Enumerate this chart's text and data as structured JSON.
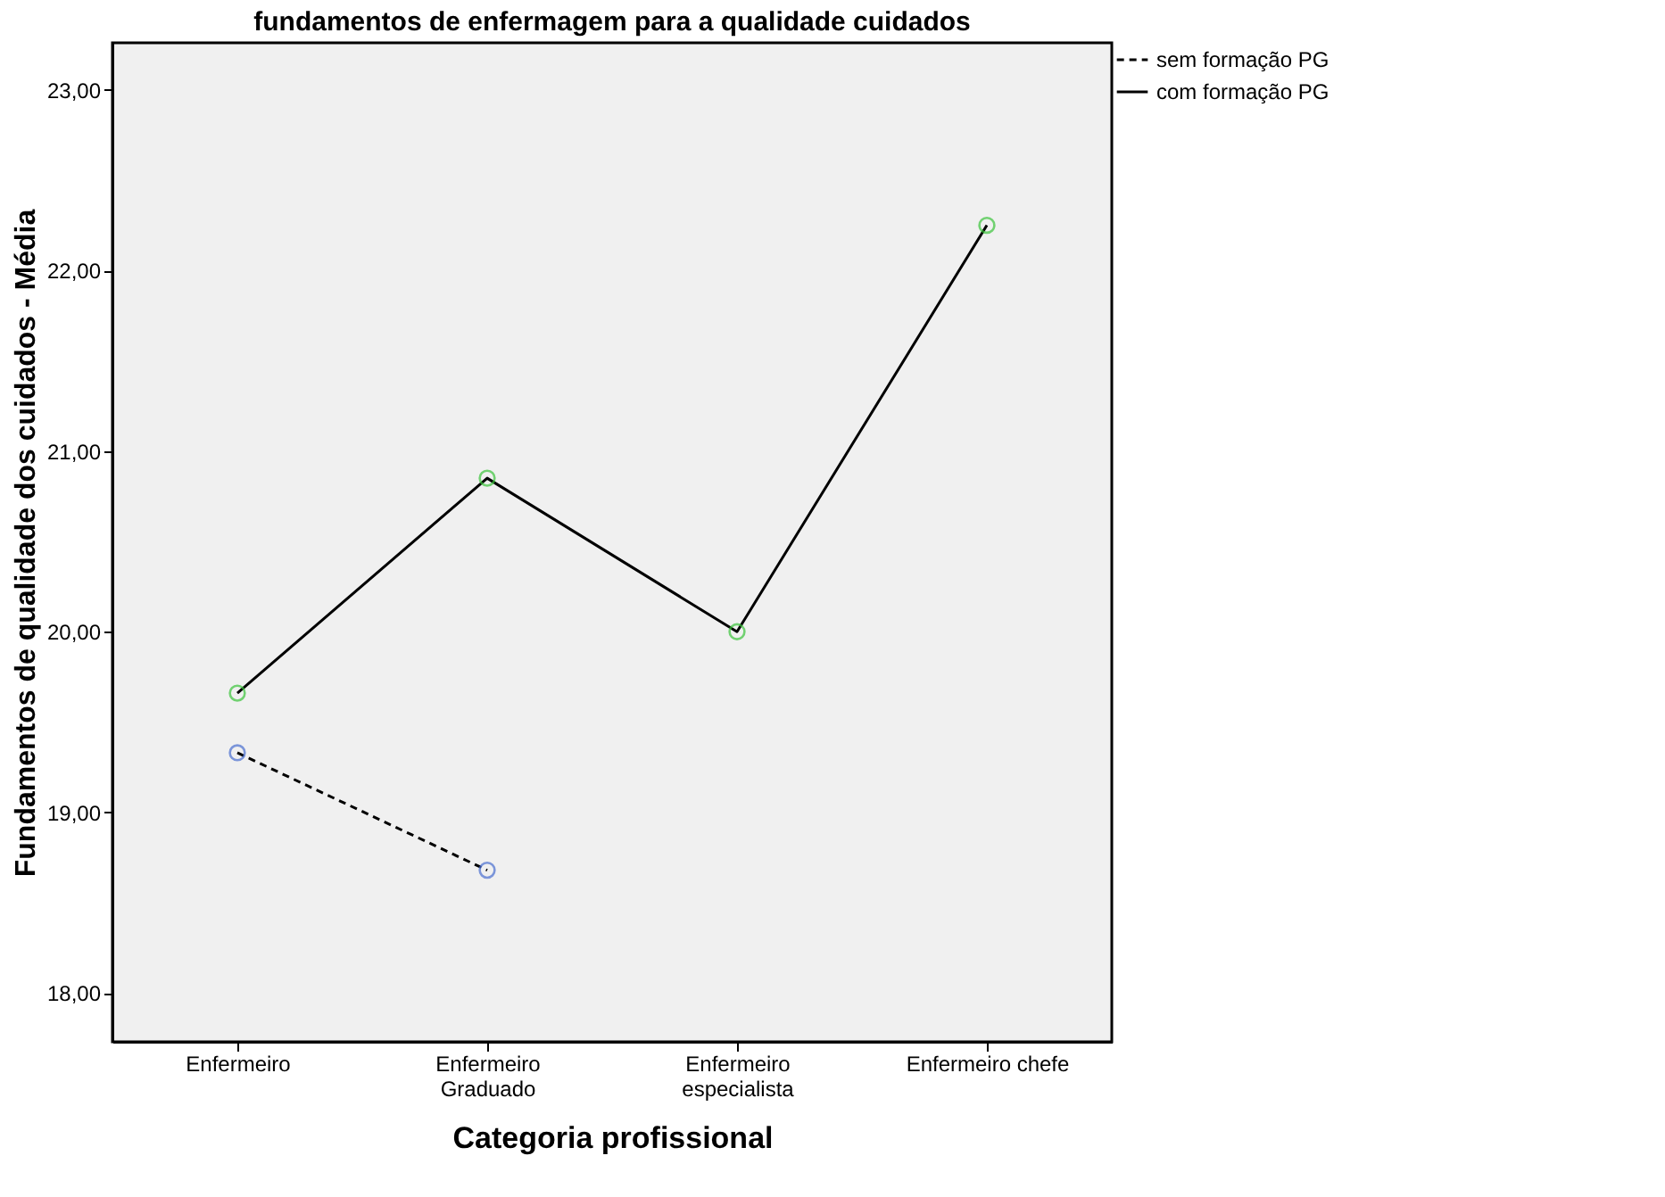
{
  "chart_data": {
    "type": "line",
    "title": "fundamentos de enfermagem para a qualidade cuidados",
    "xlabel": "Categoria profissional",
    "ylabel": "Fundamentos de qualidade dos cuidados - Média",
    "categories": [
      "Enfermeiro",
      "Enfermeiro\nGraduado",
      "Enfermeiro\nespecialista",
      "Enfermeiro chefe"
    ],
    "series": [
      {
        "name": "sem formação PG",
        "color": "#000000",
        "colors": [
          "#4a6fd0",
          "#4a6fd0",
          null,
          null
        ],
        "line_style": "dashed",
        "values": [
          19.33,
          18.68,
          null,
          null
        ]
      },
      {
        "name": "com formação PG",
        "color": "#000000",
        "colors": [
          "#3cc43c",
          "#3cc43c",
          "#3cc43c",
          "#3cc43c"
        ],
        "line_style": "solid",
        "values": [
          19.66,
          20.85,
          20.0,
          22.25
        ]
      }
    ],
    "ylim": [
      17.73,
      23.26
    ],
    "yticks": [
      {
        "value": 18,
        "label": "18,00"
      },
      {
        "value": 19,
        "label": "19,00"
      },
      {
        "value": 20,
        "label": "20,00"
      },
      {
        "value": 21,
        "label": "21,00"
      },
      {
        "value": 22,
        "label": "22,00"
      },
      {
        "value": 23,
        "label": "23,00"
      }
    ],
    "marker": "circle",
    "grid": false,
    "legend": "top right"
  }
}
